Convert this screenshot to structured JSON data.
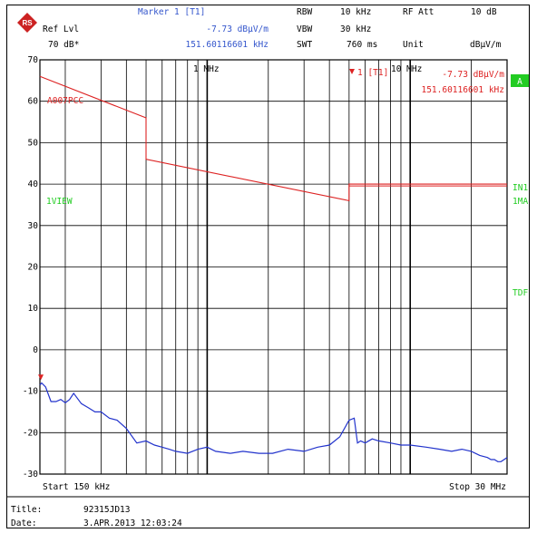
{
  "header": {
    "logo": "rohde-schwarz-logo",
    "marker_title": "Marker 1 [T1]",
    "marker_level": "-7.73 dBμV/m",
    "marker_freq": "151.60116601 kHz",
    "ref_lvl_label": "Ref Lvl",
    "ref_lvl_value": "70 dB*",
    "rbw_label": "RBW",
    "rbw_value": "10 kHz",
    "vbw_label": "VBW",
    "vbw_value": "30 kHz",
    "swt_label": "SWT",
    "swt_value": "760 ms",
    "rfatt_label": "RF Att",
    "rfatt_value": "10 dB",
    "unit_label": "Unit",
    "unit_value": "dBμV/m"
  },
  "plot": {
    "tick_1mhz": "1 MHz",
    "tick_10mhz": "10 MHz",
    "marker_tag": "1 [T1]",
    "marker_level": "-7.73 dBμV/m",
    "marker_freq": "151.60116601 kHz",
    "limit_label": "A007PCC",
    "view_label": "1VIEW",
    "side_a": "A",
    "side_in1": "IN1",
    "side_1ma": "1MA",
    "side_tdf": "TDF",
    "start_label": "Start 150 kHz",
    "stop_label": "Stop 30 MHz"
  },
  "footer": {
    "title_label": "Title:",
    "title_value": "92315JD13",
    "date_label": "Date:",
    "date_value": "3.APR.2013   12:03:24"
  },
  "colors": {
    "trace": "#2233cc",
    "limit": "#dd2222",
    "header_blue": "#3355cc",
    "green": "#22cc22",
    "grid": "#000000"
  },
  "chart_data": {
    "type": "line",
    "x_scale": "log",
    "xlim_hz": [
      150000,
      30000000
    ],
    "ylim": [
      -30,
      70
    ],
    "y_ticks": [
      70,
      60,
      50,
      40,
      30,
      20,
      10,
      0,
      -10,
      -20,
      -30
    ],
    "grid": true,
    "series": [
      {
        "name": "1VIEW",
        "x": [
          150000,
          153000,
          160000,
          170000,
          180000,
          190000,
          200000,
          210000,
          220000,
          240000,
          260000,
          280000,
          300000,
          330000,
          360000,
          400000,
          450000,
          500000,
          550000,
          600000,
          650000,
          700000,
          800000,
          900000,
          1000000,
          1100000,
          1300000,
          1500000,
          1800000,
          2100000,
          2500000,
          3000000,
          3500000,
          4000000,
          4500000,
          5000000,
          5300000,
          5500000,
          5700000,
          6000000,
          6500000,
          7000000,
          8000000,
          9000000,
          10000000,
          12000000,
          14000000,
          16000000,
          18000000,
          20000000,
          22000000,
          24000000,
          25000000,
          26000000,
          27000000,
          28000000,
          29000000,
          30000000
        ],
        "y": [
          -8.5,
          -8,
          -9,
          -12.5,
          -12.5,
          -12,
          -12.8,
          -12,
          -10.5,
          -13,
          -14,
          -15,
          -15,
          -16.5,
          -17,
          -19,
          -22.5,
          -22,
          -23,
          -23.5,
          -24,
          -24.5,
          -25,
          -24,
          -23.5,
          -24.5,
          -25,
          -24.5,
          -25,
          -25,
          -24,
          -24.5,
          -23.5,
          -23,
          -21,
          -17,
          -16.5,
          -22.5,
          -22,
          -22.5,
          -21.5,
          -22,
          -22.5,
          -23,
          -23,
          -23.5,
          -24,
          -24.5,
          -24,
          -24.5,
          -25.5,
          -26,
          -26.5,
          -26.5,
          -27,
          -27,
          -26.5,
          -26
        ]
      },
      {
        "name": "A007PCC",
        "x": [
          150000,
          500000,
          500000,
          5000000,
          5000000,
          30000000
        ],
        "y": [
          66,
          56,
          46,
          36,
          40,
          40
        ]
      }
    ],
    "marker": {
      "x": 151601.16601,
      "y": -7.73
    }
  }
}
